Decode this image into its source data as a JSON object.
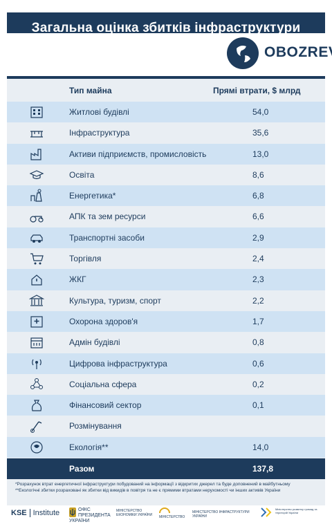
{
  "header": {
    "title": "Загальна оцінка збитків інфраструктури",
    "brand": "OBOZREV"
  },
  "table": {
    "col_type": "Тип майна",
    "col_loss": "Прямі втрати, $ млрд",
    "rows": [
      {
        "label": "Житлові будівлі",
        "value": "54,0",
        "icon": "residential-building-icon"
      },
      {
        "label": "Інфраструктура",
        "value": "35,6",
        "icon": "bridge-icon"
      },
      {
        "label": "Активи підприємств, промисловість",
        "value": "13,0",
        "icon": "factory-icon"
      },
      {
        "label": "Освіта",
        "value": "8,6",
        "icon": "graduation-cap-icon"
      },
      {
        "label": "Енергетика*",
        "value": "6,8",
        "icon": "power-plant-icon"
      },
      {
        "label": "АПК та зем ресурси",
        "value": "6,6",
        "icon": "tractor-icon"
      },
      {
        "label": "Транспортні засоби",
        "value": "2,9",
        "icon": "car-icon"
      },
      {
        "label": "Торгівля",
        "value": "2,4",
        "icon": "shopping-cart-icon"
      },
      {
        "label": "ЖКГ",
        "value": "2,3",
        "icon": "house-plug-icon"
      },
      {
        "label": "Культура, туризм, спорт",
        "value": "2,2",
        "icon": "museum-icon"
      },
      {
        "label": "Охорона здоров'я",
        "value": "1,7",
        "icon": "hospital-icon"
      },
      {
        "label": "Адмін будівлі",
        "value": "0,8",
        "icon": "admin-building-icon"
      },
      {
        "label": "Цифрова інфраструктура",
        "value": "0,6",
        "icon": "antenna-icon"
      },
      {
        "label": "Соціальна сфера",
        "value": "0,2",
        "icon": "social-network-icon"
      },
      {
        "label": "Фінансовий сектор",
        "value": "0,1",
        "icon": "money-bag-icon"
      },
      {
        "label": "Розмінування",
        "value": "",
        "icon": "mine-detector-icon"
      },
      {
        "label": "Екологія**",
        "value": "14,0",
        "icon": "globe-leaf-icon"
      }
    ],
    "total_label": "Разом",
    "total_value": "137,8"
  },
  "notes": [
    "*Розрахунок втрат енергетичної інфраструктури побудований на інформації з відкритих джерел та буде доповнений в майбутньому",
    "**Екологічні збитки розраховані як збитки від викидів в повітря та не є прямими втратами нерухомості чи інших активів України"
  ],
  "footer": {
    "kse": "KSE",
    "kse_institute": "Institute",
    "office": "ОФІС ПРЕЗИДЕНТА УКРАЇНИ",
    "economy": "МІНІСТЕРСТВО ЕКОНОМІКИ УКРАЇНИ",
    "ministry4": "МІНІСТЕРСТВО",
    "infrastructure": "МІНІСТЕРСТВО ІНФРАСТРУКТУРИ УКРАЇНИ",
    "regional": "Міністерство розвитку громад та територій України"
  },
  "colors": {
    "navy": "#1d3b5c",
    "row_alt": "#cfe2f3",
    "panel": "#e9eef3"
  }
}
